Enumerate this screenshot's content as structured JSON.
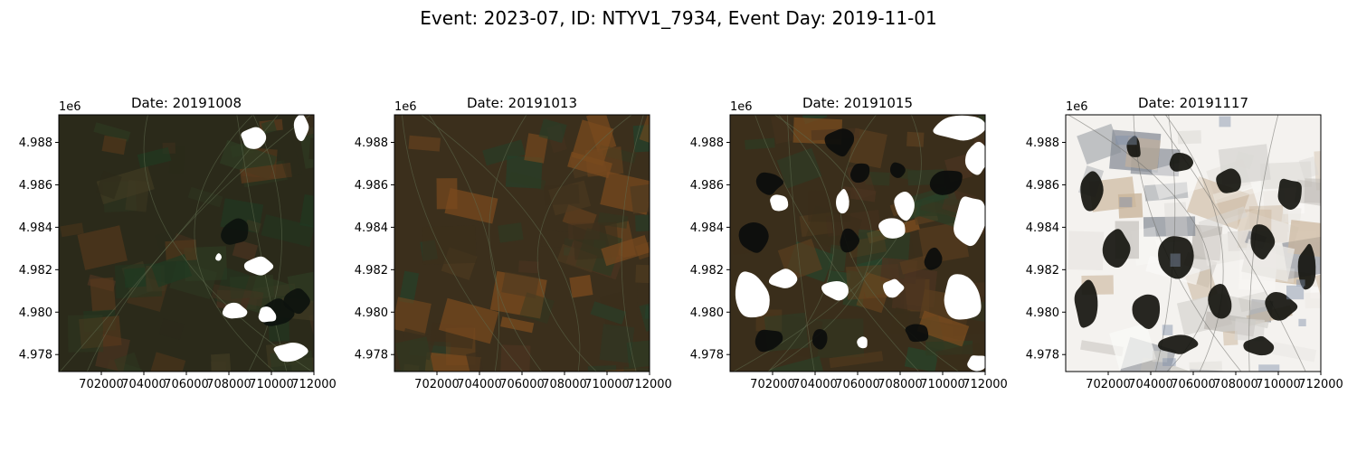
{
  "figure": {
    "suptitle": "Event: 2023-07, ID: NTYV1_7934, Event Day: 2019-11-01"
  },
  "chart_data": [
    {
      "type": "image",
      "title": "Date: 20191008",
      "x_ticks": [
        702000,
        704000,
        706000,
        708000,
        710000,
        712000
      ],
      "y_ticks": [
        4.988,
        4.986,
        4.984,
        4.982,
        4.98,
        4.978
      ],
      "y_tick_labels": [
        "4.988",
        "4.986",
        "4.984",
        "4.982",
        "4.980",
        "4.978"
      ],
      "y_offset_label": "1e6",
      "xlim": [
        700000,
        712000
      ],
      "ylim": [
        4.9772,
        4.9893
      ],
      "scene": "clear",
      "colors": {
        "base": "#2b2a1a",
        "field": "#3f3a22",
        "green": "#1f3a22",
        "rust": "#5a3a1c",
        "cloud": "#ffffff",
        "shadow": "#0d120e"
      },
      "clouds": [
        {
          "x": 709200,
          "y": 4.98825,
          "rx": 780,
          "ry": 0.00055
        },
        {
          "x": 711400,
          "y": 4.9887,
          "rx": 350,
          "ry": 0.0006
        },
        {
          "x": 709400,
          "y": 4.98215,
          "rx": 800,
          "ry": 0.0005
        },
        {
          "x": 708300,
          "y": 4.98004,
          "rx": 600,
          "ry": 0.0004
        },
        {
          "x": 709800,
          "y": 4.97985,
          "rx": 500,
          "ry": 0.0004
        },
        {
          "x": 710900,
          "y": 4.97815,
          "rx": 800,
          "ry": 0.0005
        },
        {
          "x": 707500,
          "y": 4.9826,
          "rx": 150,
          "ry": 0.0002
        }
      ],
      "shadows": [
        {
          "x": 708300,
          "y": 4.98375,
          "rx": 750,
          "ry": 0.0007
        },
        {
          "x": 710200,
          "y": 4.97995,
          "rx": 900,
          "ry": 0.0007
        },
        {
          "x": 711200,
          "y": 4.9805,
          "rx": 600,
          "ry": 0.0006
        }
      ]
    },
    {
      "type": "image",
      "title": "Date: 20191013",
      "x_ticks": [
        702000,
        704000,
        706000,
        708000,
        710000,
        712000
      ],
      "y_ticks": [
        4.988,
        4.986,
        4.984,
        4.982,
        4.98,
        4.978
      ],
      "y_tick_labels": [
        "4.988",
        "4.986",
        "4.984",
        "4.982",
        "4.980",
        "4.978"
      ],
      "y_offset_label": "1e6",
      "xlim": [
        700000,
        712000
      ],
      "ylim": [
        4.9772,
        4.9893
      ],
      "scene": "clear",
      "colors": {
        "base": "#3b2f1c",
        "field": "#4e3a20",
        "green": "#25402a",
        "rust": "#7a4a1e",
        "cloud": "#ffffff",
        "shadow": "#101410"
      },
      "clouds": [],
      "shadows": []
    },
    {
      "type": "image",
      "title": "Date: 20191015",
      "x_ticks": [
        702000,
        704000,
        706000,
        708000,
        710000,
        712000
      ],
      "y_ticks": [
        4.988,
        4.986,
        4.984,
        4.982,
        4.98,
        4.978
      ],
      "y_tick_labels": [
        "4.988",
        "4.986",
        "4.984",
        "4.982",
        "4.980",
        "4.978"
      ],
      "y_offset_label": "1e6",
      "xlim": [
        700000,
        712000
      ],
      "ylim": [
        4.9772,
        4.9893
      ],
      "scene": "partly-cloudy",
      "colors": {
        "base": "#3a2e1b",
        "field": "#5a3e1f",
        "green": "#27442b",
        "rust": "#7e4d1f",
        "cloud": "#ffffff",
        "shadow": "#0b0d0c"
      },
      "clouds": [
        {
          "x": 710800,
          "y": 4.9887,
          "rx": 1300,
          "ry": 0.0007
        },
        {
          "x": 711600,
          "y": 4.9872,
          "rx": 600,
          "ry": 0.0008
        },
        {
          "x": 702300,
          "y": 4.9852,
          "rx": 500,
          "ry": 0.0004
        },
        {
          "x": 705300,
          "y": 4.98525,
          "rx": 350,
          "ry": 0.0006
        },
        {
          "x": 708200,
          "y": 4.98505,
          "rx": 600,
          "ry": 0.0008
        },
        {
          "x": 707700,
          "y": 4.98395,
          "rx": 700,
          "ry": 0.0005
        },
        {
          "x": 711300,
          "y": 4.9843,
          "rx": 800,
          "ry": 0.0014
        },
        {
          "x": 701000,
          "y": 4.9808,
          "rx": 900,
          "ry": 0.0012
        },
        {
          "x": 702500,
          "y": 4.98155,
          "rx": 700,
          "ry": 0.0005
        },
        {
          "x": 705000,
          "y": 4.98105,
          "rx": 700,
          "ry": 0.0005
        },
        {
          "x": 707700,
          "y": 4.98115,
          "rx": 500,
          "ry": 0.0005
        },
        {
          "x": 710900,
          "y": 4.98075,
          "rx": 1100,
          "ry": 0.0012
        },
        {
          "x": 706200,
          "y": 4.97855,
          "rx": 300,
          "ry": 0.0003
        },
        {
          "x": 711600,
          "y": 4.97765,
          "rx": 500,
          "ry": 0.0004
        }
      ],
      "shadows": [
        {
          "x": 705200,
          "y": 4.98805,
          "rx": 800,
          "ry": 0.0007
        },
        {
          "x": 701800,
          "y": 4.9861,
          "rx": 700,
          "ry": 0.0006
        },
        {
          "x": 706100,
          "y": 4.9866,
          "rx": 500,
          "ry": 0.0005
        },
        {
          "x": 707900,
          "y": 4.9867,
          "rx": 400,
          "ry": 0.0004
        },
        {
          "x": 710200,
          "y": 4.98615,
          "rx": 900,
          "ry": 0.0007
        },
        {
          "x": 701200,
          "y": 4.98355,
          "rx": 800,
          "ry": 0.0009
        },
        {
          "x": 705600,
          "y": 4.9834,
          "rx": 500,
          "ry": 0.0006
        },
        {
          "x": 709600,
          "y": 4.98255,
          "rx": 500,
          "ry": 0.0006
        },
        {
          "x": 701800,
          "y": 4.97865,
          "rx": 700,
          "ry": 0.0006
        },
        {
          "x": 704200,
          "y": 4.9787,
          "rx": 400,
          "ry": 0.0005
        },
        {
          "x": 708800,
          "y": 4.97905,
          "rx": 600,
          "ry": 0.0005
        }
      ]
    },
    {
      "type": "image",
      "title": "Date: 20191117",
      "x_ticks": [
        702000,
        704000,
        706000,
        708000,
        710000,
        712000
      ],
      "y_ticks": [
        4.988,
        4.986,
        4.984,
        4.982,
        4.98,
        4.978
      ],
      "y_tick_labels": [
        "4.988",
        "4.986",
        "4.984",
        "4.982",
        "4.980",
        "4.978"
      ],
      "y_offset_label": "1e6",
      "xlim": [
        700000,
        712000
      ],
      "ylim": [
        4.9772,
        4.9893
      ],
      "scene": "snow",
      "colors": {
        "base": "#f4f2ef",
        "field": "#e9e6e2",
        "green": "#2a2a20",
        "rust": "#c9b49a",
        "cloud": "#ffffff",
        "shadow": "#15150f"
      },
      "clouds": [],
      "shadows": [
        {
          "x": 701200,
          "y": 4.98575,
          "rx": 600,
          "ry": 0.0011
        },
        {
          "x": 703200,
          "y": 4.98775,
          "rx": 400,
          "ry": 0.0006
        },
        {
          "x": 705400,
          "y": 4.98705,
          "rx": 600,
          "ry": 0.0005
        },
        {
          "x": 707700,
          "y": 4.98615,
          "rx": 700,
          "ry": 0.0007
        },
        {
          "x": 710500,
          "y": 4.98555,
          "rx": 700,
          "ry": 0.0008
        },
        {
          "x": 702400,
          "y": 4.98305,
          "rx": 700,
          "ry": 0.0009
        },
        {
          "x": 705200,
          "y": 4.98265,
          "rx": 800,
          "ry": 0.0011
        },
        {
          "x": 709200,
          "y": 4.98325,
          "rx": 700,
          "ry": 0.0009
        },
        {
          "x": 711400,
          "y": 4.98215,
          "rx": 500,
          "ry": 0.0012
        },
        {
          "x": 701000,
          "y": 4.9803,
          "rx": 600,
          "ry": 0.0012
        },
        {
          "x": 703800,
          "y": 4.9801,
          "rx": 700,
          "ry": 0.0009
        },
        {
          "x": 707300,
          "y": 4.9804,
          "rx": 700,
          "ry": 0.0009
        },
        {
          "x": 710100,
          "y": 4.98025,
          "rx": 800,
          "ry": 0.0008
        },
        {
          "x": 705300,
          "y": 4.97845,
          "rx": 900,
          "ry": 0.0005
        },
        {
          "x": 709100,
          "y": 4.9784,
          "rx": 700,
          "ry": 0.0005
        }
      ]
    }
  ]
}
